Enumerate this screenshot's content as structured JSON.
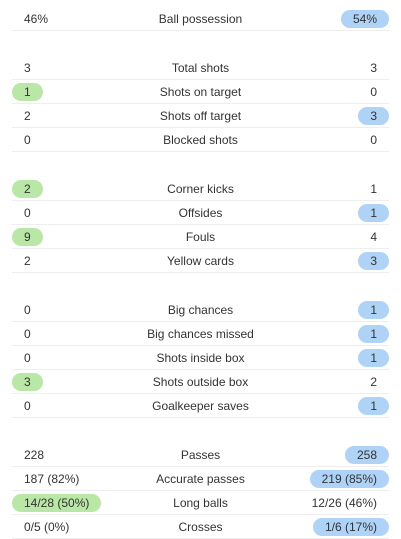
{
  "groups": [
    {
      "rows": [
        {
          "home": "46%",
          "label": "Ball possession",
          "away": "54%",
          "highlight": "away"
        }
      ]
    },
    {
      "rows": [
        {
          "home": "3",
          "label": "Total shots",
          "away": "3",
          "highlight": "none"
        },
        {
          "home": "1",
          "label": "Shots on target",
          "away": "0",
          "highlight": "home"
        },
        {
          "home": "2",
          "label": "Shots off target",
          "away": "3",
          "highlight": "away"
        },
        {
          "home": "0",
          "label": "Blocked shots",
          "away": "0",
          "highlight": "none"
        }
      ]
    },
    {
      "rows": [
        {
          "home": "2",
          "label": "Corner kicks",
          "away": "1",
          "highlight": "home"
        },
        {
          "home": "0",
          "label": "Offsides",
          "away": "1",
          "highlight": "away"
        },
        {
          "home": "9",
          "label": "Fouls",
          "away": "4",
          "highlight": "home"
        },
        {
          "home": "2",
          "label": "Yellow cards",
          "away": "3",
          "highlight": "away"
        }
      ]
    },
    {
      "rows": [
        {
          "home": "0",
          "label": "Big chances",
          "away": "1",
          "highlight": "away"
        },
        {
          "home": "0",
          "label": "Big chances missed",
          "away": "1",
          "highlight": "away"
        },
        {
          "home": "0",
          "label": "Shots inside box",
          "away": "1",
          "highlight": "away"
        },
        {
          "home": "3",
          "label": "Shots outside box",
          "away": "2",
          "highlight": "home"
        },
        {
          "home": "0",
          "label": "Goalkeeper saves",
          "away": "1",
          "highlight": "away"
        }
      ]
    },
    {
      "rows": [
        {
          "home": "228",
          "label": "Passes",
          "away": "258",
          "highlight": "away"
        },
        {
          "home": "187 (82%)",
          "label": "Accurate passes",
          "away": "219 (85%)",
          "highlight": "away"
        },
        {
          "home": "14/28 (50%)",
          "label": "Long balls",
          "away": "12/26 (46%)",
          "highlight": "home"
        },
        {
          "home": "0/5 (0%)",
          "label": "Crosses",
          "away": "1/6 (17%)",
          "highlight": "away"
        }
      ]
    }
  ]
}
